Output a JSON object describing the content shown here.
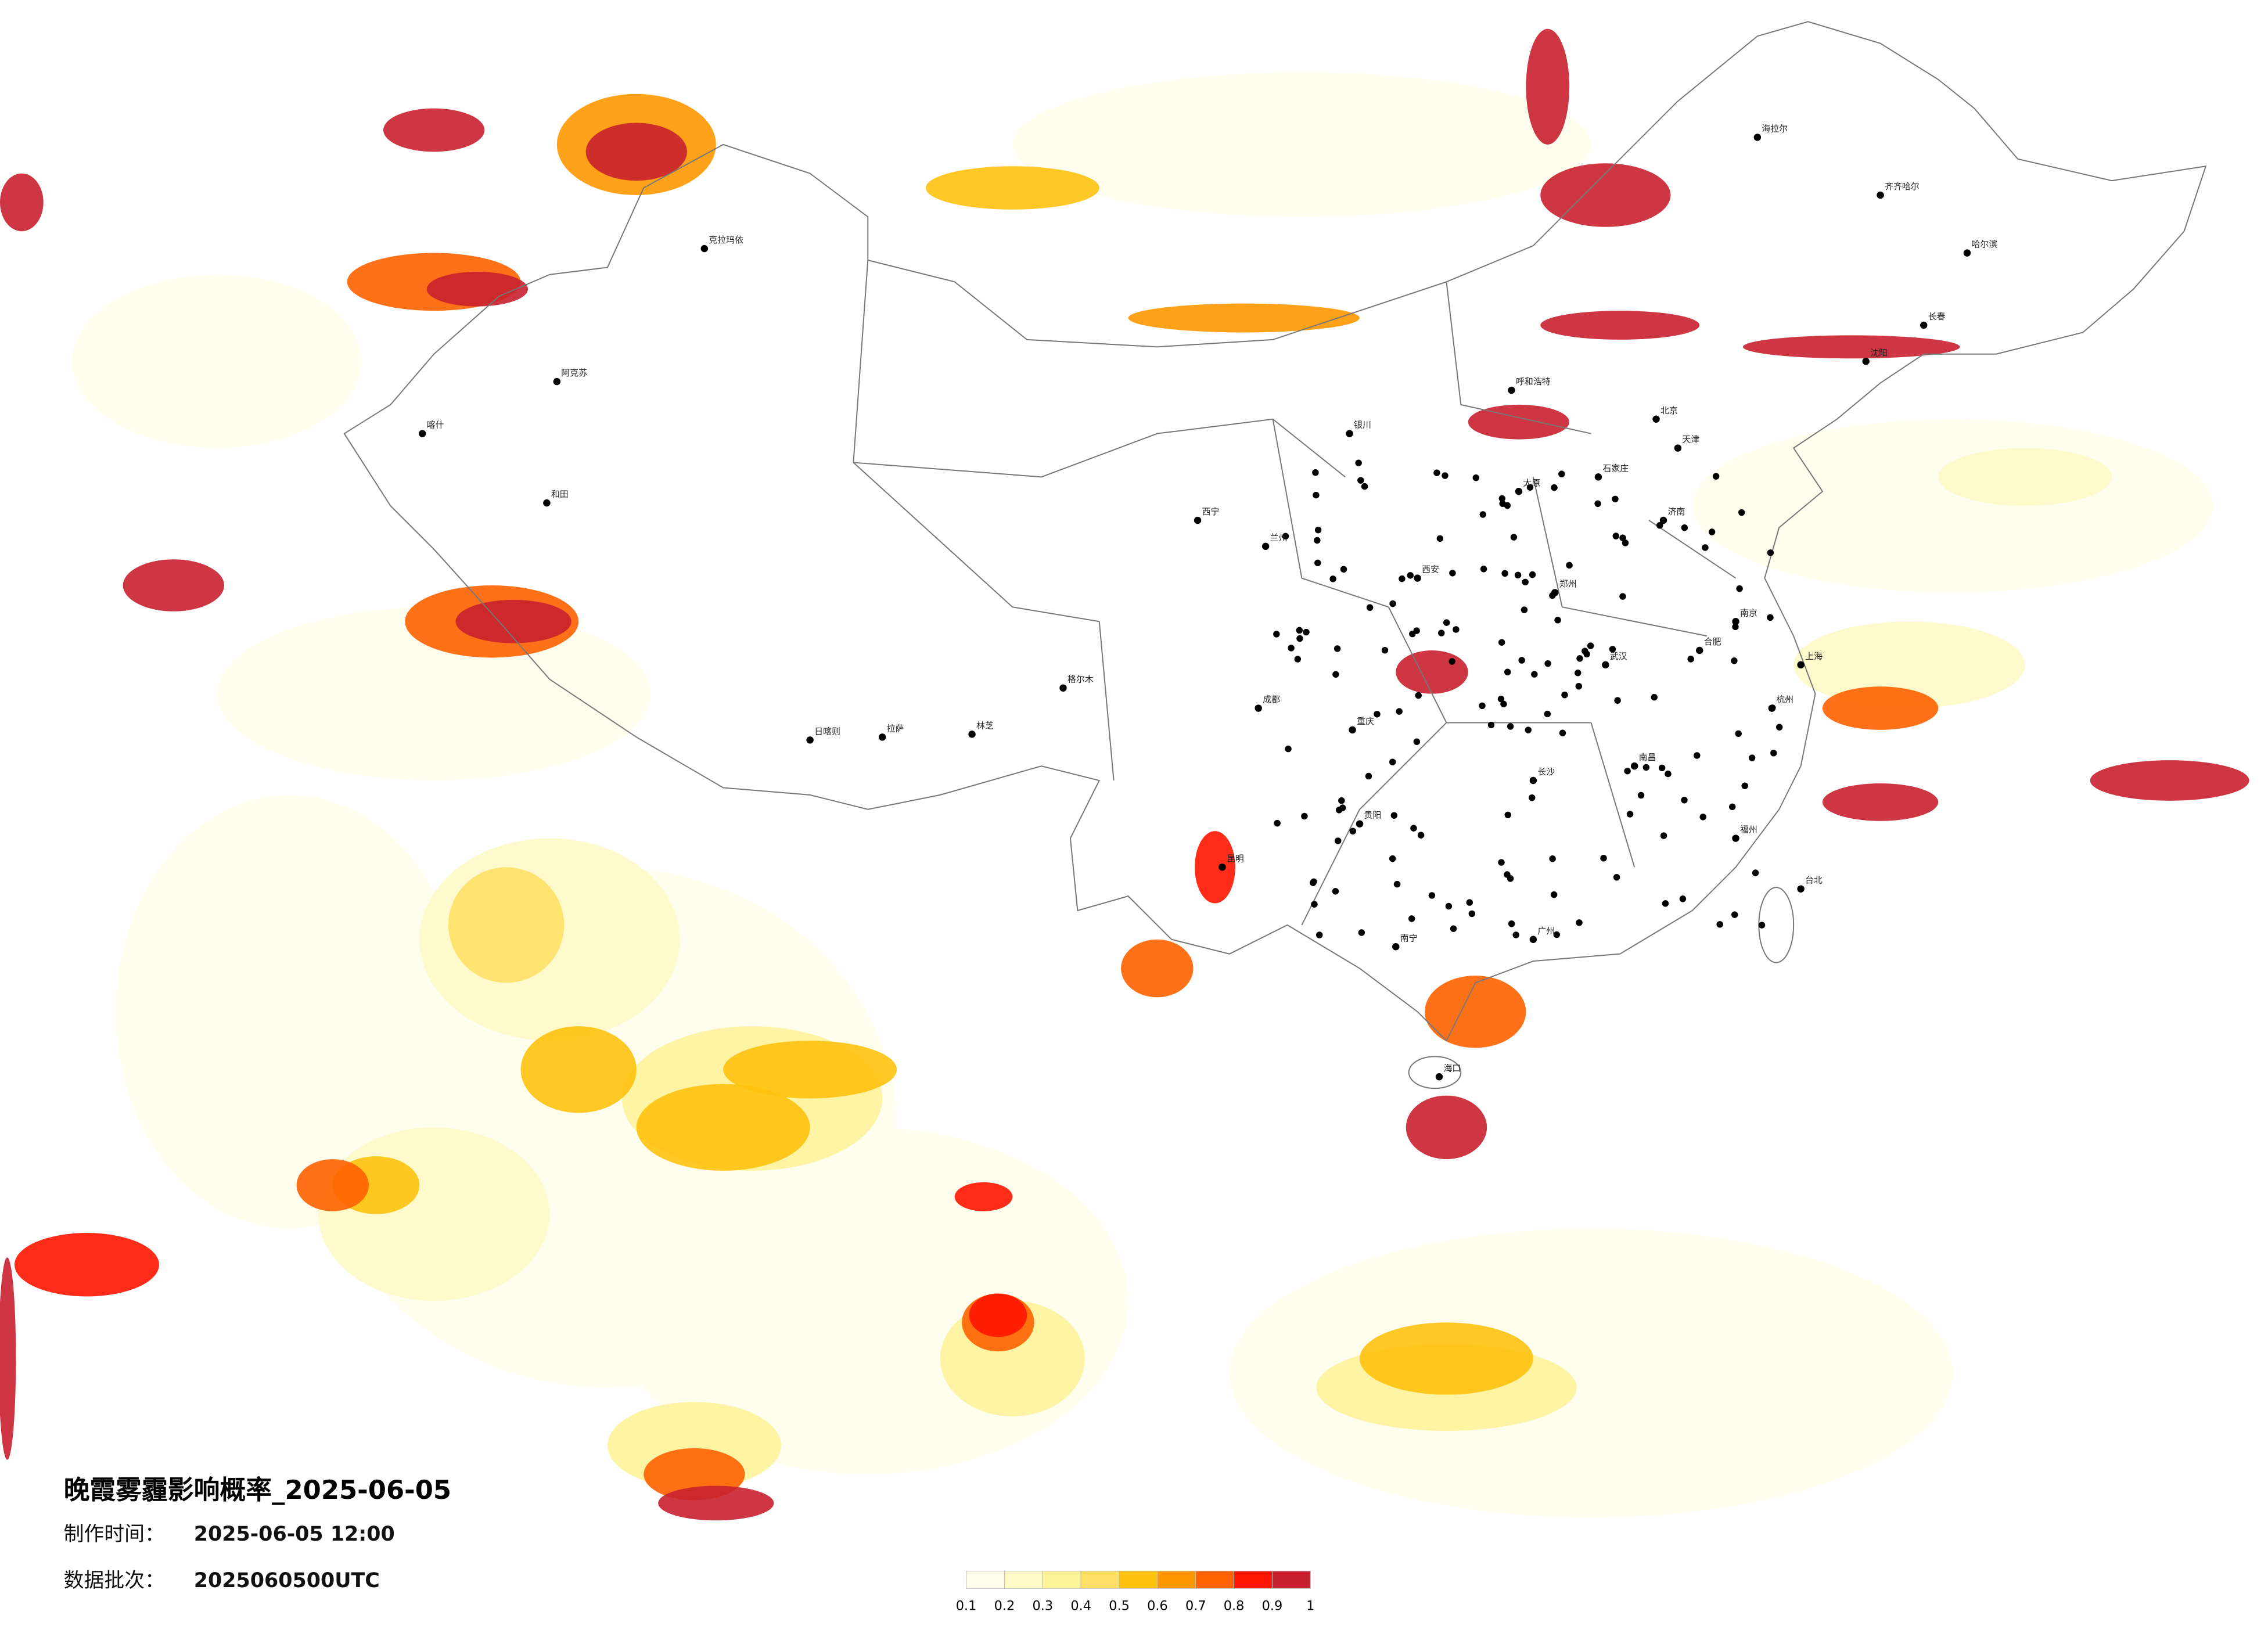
{
  "title": "晚霞雾霾影响概率_2025-06-05",
  "made_label": "制作时间：",
  "made_time": "2025-06-05 12:00",
  "batch_label": "数据批次：",
  "batch": "2025060500UTC",
  "legend": {
    "colors": [
      "#fffdec",
      "#fffac8",
      "#fff39a",
      "#ffe066",
      "#ffc20e",
      "#ff9800",
      "#ff6200",
      "#ff1500",
      "#c8202e"
    ],
    "ticks": [
      0.1,
      0.2,
      0.3,
      0.4,
      0.5,
      0.6,
      0.7,
      0.8,
      0.9,
      1
    ]
  },
  "cities": [
    "克拉玛依",
    "阿克苏",
    "和田",
    "喀什",
    "拉萨",
    "日喀则",
    "西宁",
    "兰州",
    "银川",
    "呼和浩特",
    "北京",
    "天津",
    "石家庄",
    "太原",
    "济南",
    "郑州",
    "西安",
    "成都",
    "重庆",
    "武汉",
    "长沙",
    "南昌",
    "合肥",
    "南京",
    "上海",
    "杭州",
    "福州",
    "广州",
    "南宁",
    "昆明",
    "贵阳",
    "海口",
    "哈尔滨",
    "长春",
    "沈阳",
    "台北",
    "海拉尔",
    "齐齐哈尔",
    "格尔木",
    "林芝"
  ]
}
